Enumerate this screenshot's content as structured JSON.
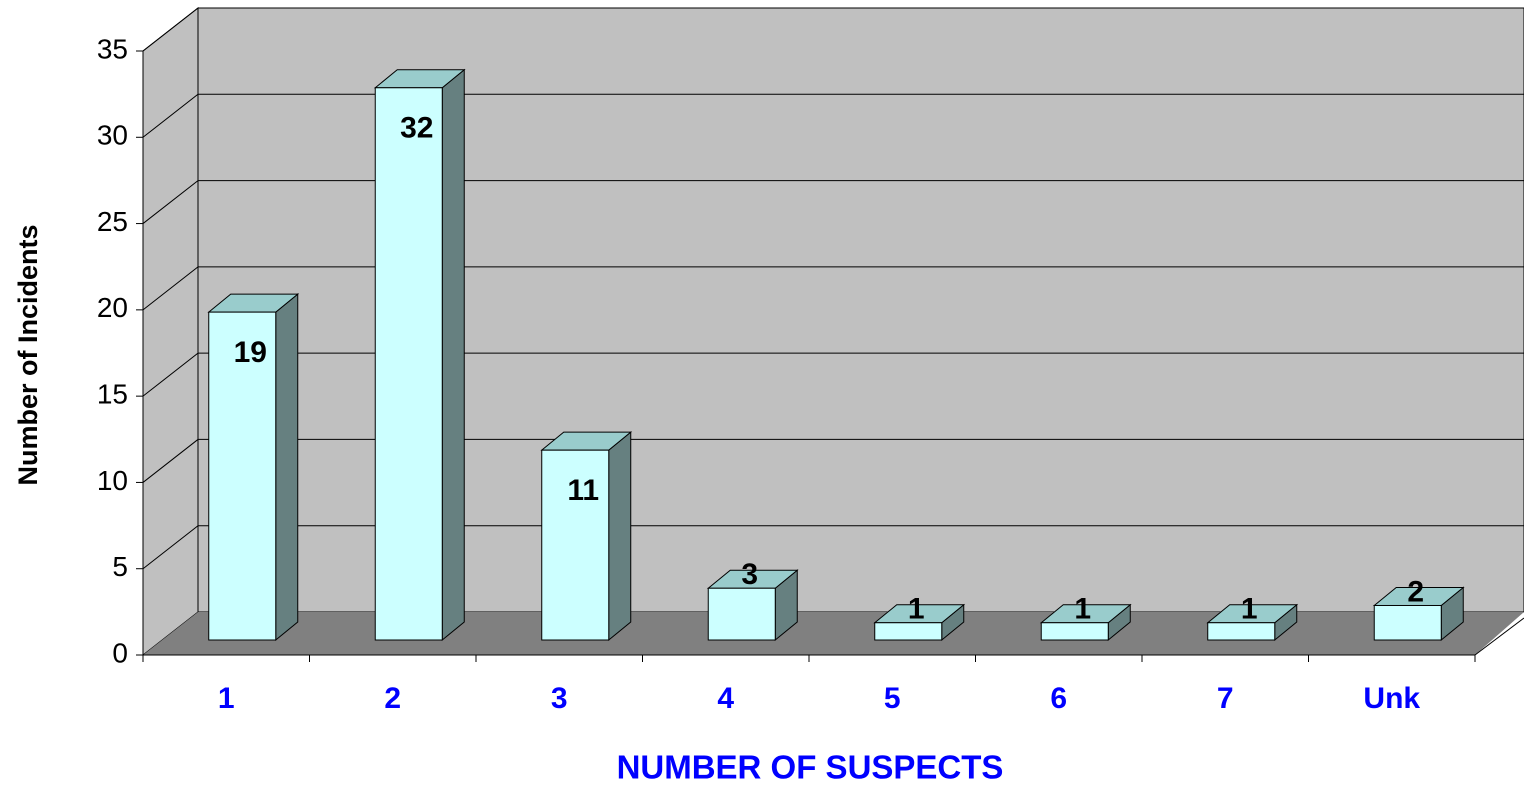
{
  "chart_data": {
    "type": "bar3d",
    "x_label": "NUMBER OF SUSPECTS",
    "y_label": "Number of Incidents",
    "categories": [
      "1",
      "2",
      "3",
      "4",
      "5",
      "6",
      "7",
      "Unk"
    ],
    "values": [
      19,
      32,
      11,
      3,
      1,
      1,
      1,
      2
    ],
    "color": "#ccffff",
    "side_color": "#668080",
    "top_color": "#99cccc",
    "ylim": [
      0,
      35
    ],
    "yticks": [
      0,
      5,
      10,
      15,
      20,
      25,
      30,
      35
    ],
    "grid": true
  }
}
